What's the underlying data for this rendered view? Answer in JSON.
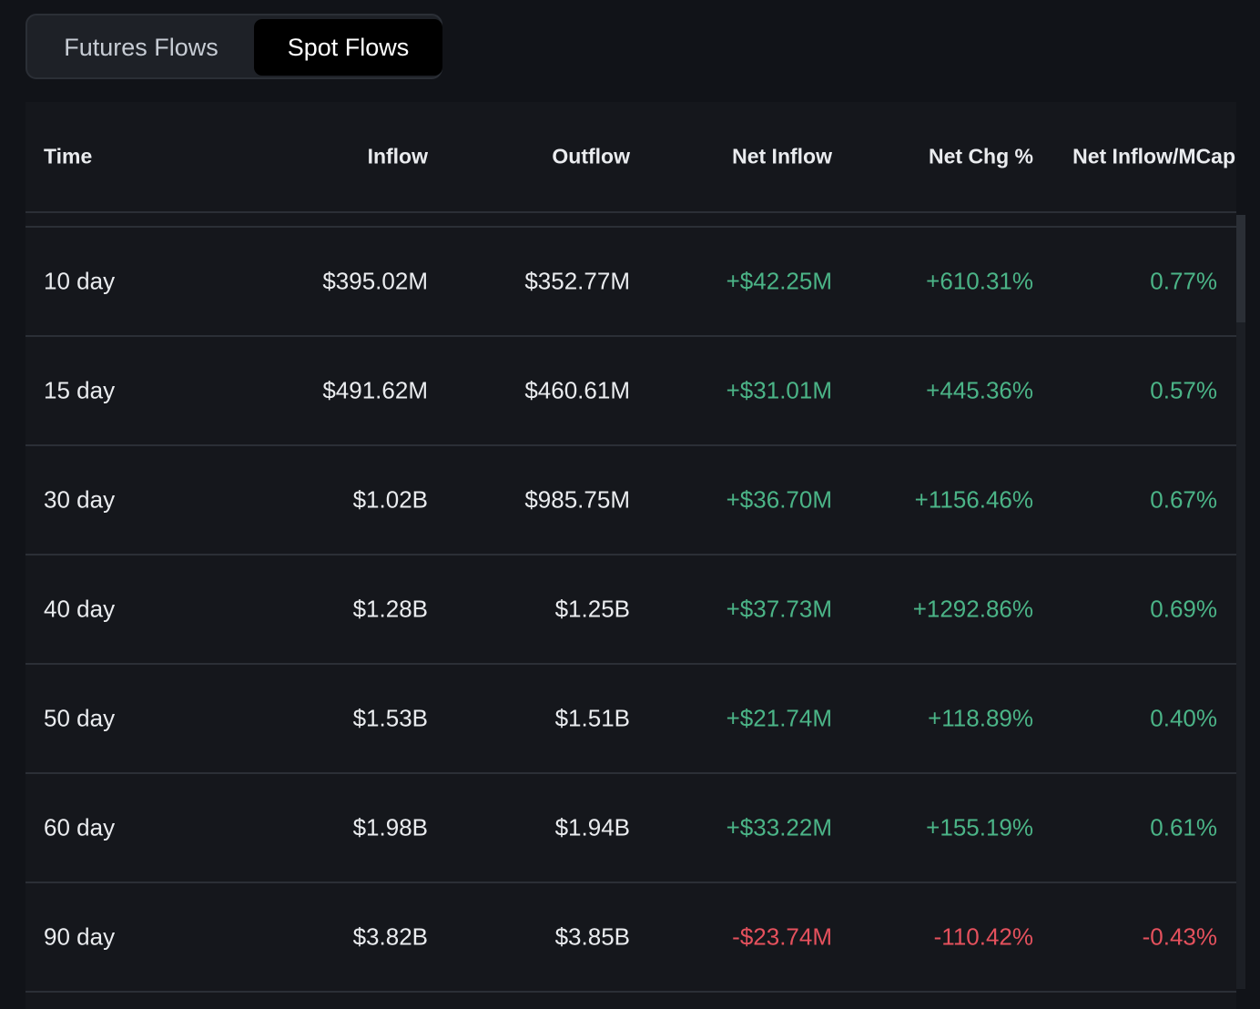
{
  "tabs": [
    "Futures Flows",
    "Spot Flows"
  ],
  "active_tab": 1,
  "table": {
    "headers": [
      "Time",
      "Inflow",
      "Outflow",
      "Net Inflow",
      "Net Chg %",
      "Net Inflow/MCap"
    ],
    "rows": [
      [
        "10 day",
        "$395.02M",
        "$352.77M",
        "+$42.25M",
        "+610.31%",
        "0.77%"
      ],
      [
        "15 day",
        "$491.62M",
        "$460.61M",
        "+$31.01M",
        "+445.36%",
        "0.57%"
      ],
      [
        "30 day",
        "$1.02B",
        "$985.75M",
        "+$36.70M",
        "+1156.46%",
        "0.67%"
      ],
      [
        "40 day",
        "$1.28B",
        "$1.25B",
        "+$37.73M",
        "+1292.86%",
        "0.69%"
      ],
      [
        "50 day",
        "$1.53B",
        "$1.51B",
        "+$21.74M",
        "+118.89%",
        "0.40%"
      ],
      [
        "60 day",
        "$1.98B",
        "$1.94B",
        "+$33.22M",
        "+155.19%",
        "0.61%"
      ],
      [
        "90 day",
        "$3.82B",
        "$3.85B",
        "-$23.74M",
        "-110.42%",
        "-0.43%"
      ]
    ]
  }
}
